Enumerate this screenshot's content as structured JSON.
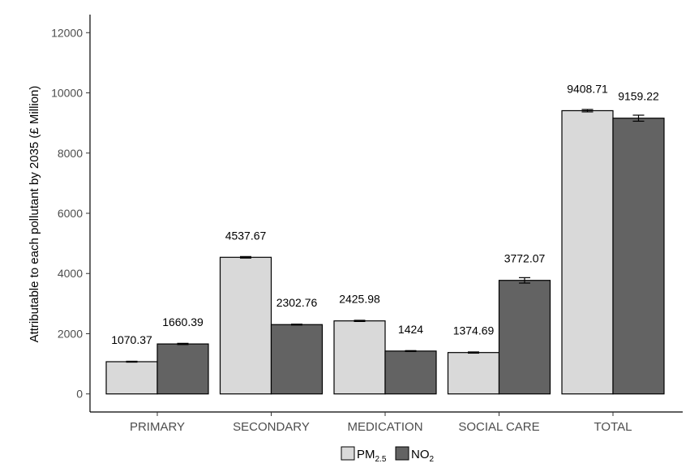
{
  "chart_data": {
    "type": "bar",
    "categories": [
      "PRIMARY",
      "SECONDARY",
      "MEDICATION",
      "SOCIAL CARE",
      "TOTAL"
    ],
    "series": [
      {
        "name": "PM2.5",
        "name_main": "PM",
        "name_sub": "2.5",
        "color": "#d9d9d9",
        "values": [
          1070.37,
          4537.67,
          2425.98,
          1374.69,
          9408.71
        ],
        "labels": [
          "1070.37",
          "4537.67",
          "2425.98",
          "1374.69",
          "9408.71"
        ],
        "errors": [
          15,
          25,
          20,
          20,
          40
        ]
      },
      {
        "name": "NO2",
        "name_main": "NO",
        "name_sub": "2",
        "color": "#636363",
        "values": [
          1660.39,
          2302.76,
          1424,
          3772.07,
          9159.22
        ],
        "labels": [
          "1660.39",
          "2302.76",
          "1424",
          "3772.07",
          "9159.22"
        ],
        "errors": [
          20,
          15,
          15,
          90,
          100
        ]
      }
    ],
    "ylabel": "Attributable to each pollutant by 2035 (£ Million)",
    "xlabel": "",
    "title": "",
    "ylim": [
      -600,
      12600
    ],
    "yticks": [
      0,
      2000,
      4000,
      6000,
      8000,
      10000,
      12000
    ],
    "grid": false,
    "legend_position": "bottom"
  }
}
